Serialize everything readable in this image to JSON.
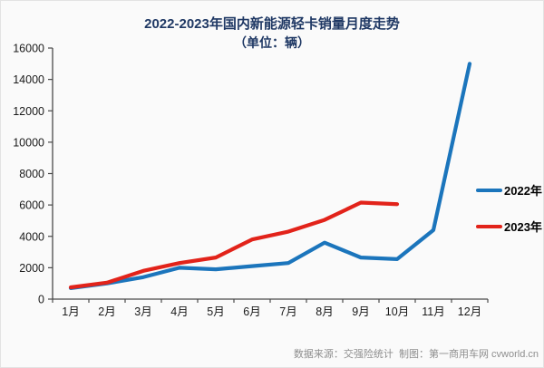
{
  "title": "2022-2023年国内新能源轻卡销量月度走势",
  "subtitle": "（单位：辆）",
  "source_note": "数据来源：交强险统计  制图：第一商用车网 cvworld.cn",
  "colors": {
    "series_2022": "#1b75bc",
    "series_2023": "#e2231a",
    "title_text": "#1f3864",
    "axis_line": "#4a4a4a",
    "axis_label": "#1a1a1a",
    "source_text": "#8e8e8e",
    "background": "#fafafa"
  },
  "chart_data": {
    "type": "line",
    "title": "2022-2023年国内新能源轻卡销量月度走势",
    "subtitle": "（单位：辆）",
    "categories": [
      "1月",
      "2月",
      "3月",
      "4月",
      "5月",
      "6月",
      "7月",
      "8月",
      "9月",
      "10月",
      "11月",
      "12月"
    ],
    "series": [
      {
        "name": "2022年",
        "color": "#1b75bc",
        "values": [
          700,
          1000,
          1400,
          2000,
          1900,
          2100,
          2300,
          3600,
          2650,
          2550,
          4400,
          15000
        ]
      },
      {
        "name": "2023年",
        "color": "#e2231a",
        "values": [
          750,
          1050,
          1800,
          2300,
          2650,
          3800,
          4300,
          5050,
          6150,
          6050
        ]
      }
    ],
    "xlabel": "",
    "ylabel": "",
    "ylim": [
      0,
      16000
    ],
    "ytick_step": 2000,
    "yticks": [
      0,
      2000,
      4000,
      6000,
      8000,
      10000,
      12000,
      14000,
      16000
    ],
    "grid": false,
    "legend_position": "right"
  }
}
